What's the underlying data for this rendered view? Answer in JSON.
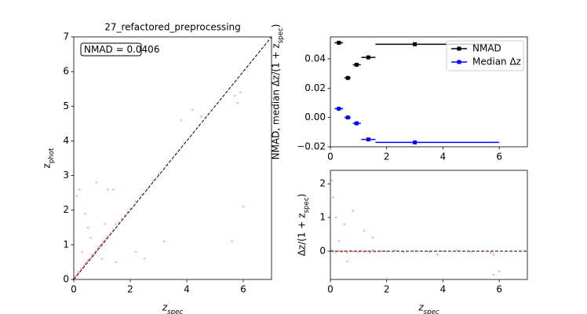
{
  "chart_data": [
    {
      "type": "scatter",
      "title": "27_refactored_preprocessing",
      "xlabel": "z_spec",
      "ylabel": "z_phot",
      "annotation": "NMAD = 0.0406",
      "identity_line": true,
      "xlim": [
        0,
        7
      ],
      "ylim": [
        0,
        7
      ],
      "xticks": [
        0,
        2,
        4,
        6
      ],
      "yticks": [
        0,
        1,
        2,
        3,
        4,
        5,
        6,
        7
      ],
      "series": [
        {
          "color": "#ff0000",
          "alpha": 0.3,
          "x": [
            0.05,
            0.1,
            0.15,
            0.2,
            0.25,
            0.3,
            0.35,
            0.4,
            0.45,
            0.5,
            0.55,
            0.6,
            0.65,
            0.7,
            0.75,
            0.8,
            0.85,
            0.9,
            0.95,
            1.0,
            1.05,
            1.1,
            1.15,
            1.2,
            1.3,
            1.4,
            1.5,
            1.6,
            1.7,
            1.8,
            1.9,
            2.0,
            2.2,
            2.4,
            2.6,
            2.8,
            3.0,
            3.3,
            3.6,
            0.1,
            0.2,
            0.5,
            0.8,
            1.2,
            1.4,
            1.5,
            2.2,
            2.5,
            3.2,
            3.8,
            4.2,
            4.5,
            5.7,
            5.8,
            5.9,
            6.0,
            5.6,
            0.3,
            0.6,
            1.0,
            1.1,
            0.4
          ],
          "values": [
            0.08,
            0.12,
            0.2,
            0.22,
            0.3,
            0.32,
            0.4,
            0.45,
            0.5,
            0.55,
            0.58,
            0.62,
            0.7,
            0.72,
            0.8,
            0.82,
            0.9,
            0.95,
            1.0,
            1.02,
            1.1,
            1.12,
            1.2,
            1.25,
            1.35,
            1.45,
            1.6,
            1.65,
            1.75,
            1.85,
            1.95,
            2.05,
            2.25,
            2.45,
            2.6,
            2.85,
            3.05,
            3.3,
            3.6,
            2.4,
            2.6,
            1.5,
            2.8,
            2.6,
            2.6,
            0.5,
            0.8,
            0.6,
            1.1,
            4.6,
            4.9,
            4.7,
            5.3,
            5.1,
            5.4,
            2.1,
            1.1,
            0.8,
            1.2,
            0.6,
            1.6,
            1.9
          ]
        }
      ]
    },
    {
      "type": "errorbar",
      "ylabel": "NMAD, median Δz/(1 + z_spec)",
      "legend": "upper right",
      "xlim": [
        0,
        7
      ],
      "ylim": [
        -0.02,
        0.055
      ],
      "xticks": [
        0,
        2,
        4,
        6
      ],
      "yticks": [
        {
          "value": -0.02,
          "label": "−0.02"
        },
        {
          "value": 0,
          "label": "0.00"
        },
        {
          "value": 0.02,
          "label": "0.02"
        },
        {
          "value": 0.04,
          "label": "0.04"
        }
      ],
      "series": [
        {
          "name": "NMAD",
          "color": "#000000",
          "x": [
            0.3,
            0.62,
            0.93,
            1.35,
            3.0
          ],
          "x_low": [
            0.15,
            0.5,
            0.8,
            1.1,
            1.6
          ],
          "x_high": [
            0.45,
            0.72,
            1.08,
            1.6,
            6.0
          ],
          "values": [
            0.051,
            0.027,
            0.036,
            0.041,
            0.05
          ]
        },
        {
          "name": "Median Δz",
          "color": "#0000ff",
          "x": [
            0.3,
            0.62,
            0.93,
            1.35,
            3.0
          ],
          "x_low": [
            0.15,
            0.5,
            0.8,
            1.1,
            1.6
          ],
          "x_high": [
            0.45,
            0.72,
            1.08,
            1.6,
            6.0
          ],
          "values": [
            0.006,
            0.0,
            -0.004,
            -0.015,
            -0.017
          ]
        }
      ]
    },
    {
      "type": "scatter",
      "xlabel": "z_spec",
      "ylabel": "Δz/(1 + z_spec)",
      "hline": 0,
      "xlim": [
        0,
        7
      ],
      "ylim": [
        -0.84,
        2.4
      ],
      "xticks": [
        0,
        2,
        4,
        6
      ],
      "yticks": [
        0,
        1,
        2
      ],
      "series": [
        {
          "color": "#ff0000",
          "alpha": 0.3,
          "x": [
            0.05,
            0.1,
            0.2,
            0.3,
            0.4,
            0.5,
            0.6,
            0.7,
            0.8,
            0.9,
            1.0,
            1.1,
            1.2,
            1.3,
            1.4,
            1.5,
            1.6,
            1.8,
            2.0,
            2.3,
            2.6,
            3.0,
            3.5,
            4.0,
            4.5,
            5.0,
            5.7,
            5.8,
            0.05,
            0.1,
            0.2,
            0.5,
            0.8,
            1.2,
            0.3,
            0.6,
            5.8,
            6.0,
            3.8,
            1.5
          ],
          "values": [
            0.02,
            0.0,
            -0.03,
            0.01,
            -0.02,
            0.0,
            -0.04,
            0.02,
            -0.01,
            0.0,
            -0.03,
            0.01,
            -0.02,
            0.0,
            -0.05,
            0.03,
            -0.02,
            0.0,
            -0.01,
            0.02,
            -0.03,
            0.01,
            -0.02,
            0.0,
            0.03,
            -0.02,
            -0.05,
            -0.1,
            2.1,
            1.6,
            1.0,
            0.8,
            1.2,
            0.6,
            0.3,
            -0.3,
            -0.7,
            -0.6,
            -0.1,
            0.4
          ]
        }
      ]
    }
  ]
}
